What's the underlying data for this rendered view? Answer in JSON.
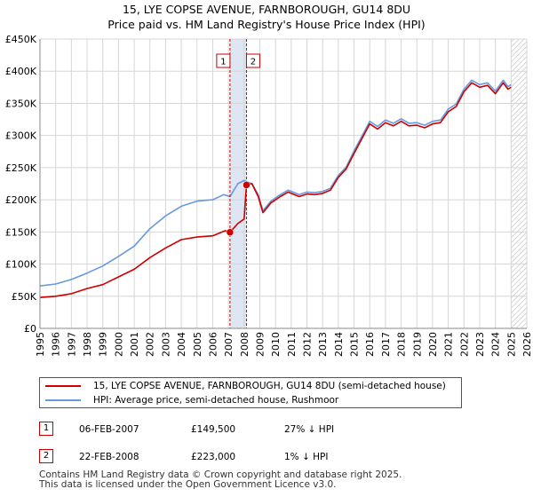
{
  "title_line1": "15, LYE COPSE AVENUE, FARNBOROUGH, GU14 8DU",
  "title_line2": "Price paid vs. HM Land Registry's House Price Index (HPI)",
  "colors": {
    "property": "#cc0000",
    "hpi": "#6699dd",
    "grid": "#d6d6d6",
    "shade": "#dde6f2",
    "marker_line": "#cc0000"
  },
  "chart_data": {
    "type": "line",
    "xlim": [
      1995,
      2026
    ],
    "ylim": [
      0,
      450000
    ],
    "y_ticks": [
      0,
      50000,
      100000,
      150000,
      200000,
      250000,
      300000,
      350000,
      400000,
      450000
    ],
    "y_tick_labels": [
      "£0",
      "£50K",
      "£100K",
      "£150K",
      "£200K",
      "£250K",
      "£300K",
      "£350K",
      "£400K",
      "£450K"
    ],
    "x_ticks": [
      1995,
      1996,
      1997,
      1998,
      1999,
      2000,
      2001,
      2002,
      2003,
      2004,
      2005,
      2006,
      2007,
      2008,
      2009,
      2010,
      2011,
      2012,
      2013,
      2014,
      2015,
      2016,
      2017,
      2018,
      2019,
      2020,
      2021,
      2022,
      2023,
      2024,
      2025,
      2026
    ],
    "grid": true,
    "shaded_ranges": [
      [
        2007.1,
        2008.15
      ]
    ],
    "hatched_range": [
      2025.0,
      2026.0
    ],
    "series": [
      {
        "name": "15, LYE COPSE AVENUE, FARNBOROUGH, GU14 8DU (semi-detached house)",
        "color": "#cc0000",
        "points": [
          [
            1995.0,
            48000
          ],
          [
            1996.0,
            50000
          ],
          [
            1997.0,
            54000
          ],
          [
            1998.0,
            62000
          ],
          [
            1999.0,
            68000
          ],
          [
            2000.0,
            80000
          ],
          [
            2001.0,
            92000
          ],
          [
            2002.0,
            110000
          ],
          [
            2003.0,
            125000
          ],
          [
            2004.0,
            138000
          ],
          [
            2005.0,
            142000
          ],
          [
            2006.0,
            144000
          ],
          [
            2006.8,
            152000
          ],
          [
            2007.1,
            149500
          ],
          [
            2007.6,
            163000
          ],
          [
            2008.0,
            170000
          ],
          [
            2008.15,
            223000
          ],
          [
            2008.5,
            225000
          ],
          [
            2008.9,
            205000
          ],
          [
            2009.2,
            180000
          ],
          [
            2009.7,
            195000
          ],
          [
            2010.3,
            205000
          ],
          [
            2010.8,
            212000
          ],
          [
            2011.5,
            205000
          ],
          [
            2012.0,
            209000
          ],
          [
            2012.5,
            208000
          ],
          [
            2013.0,
            210000
          ],
          [
            2013.5,
            215000
          ],
          [
            2014.0,
            235000
          ],
          [
            2014.5,
            248000
          ],
          [
            2015.0,
            272000
          ],
          [
            2015.5,
            295000
          ],
          [
            2016.0,
            318000
          ],
          [
            2016.5,
            310000
          ],
          [
            2017.0,
            320000
          ],
          [
            2017.5,
            315000
          ],
          [
            2018.0,
            322000
          ],
          [
            2018.5,
            315000
          ],
          [
            2019.0,
            316000
          ],
          [
            2019.5,
            312000
          ],
          [
            2020.0,
            318000
          ],
          [
            2020.5,
            320000
          ],
          [
            2021.0,
            337000
          ],
          [
            2021.5,
            345000
          ],
          [
            2022.0,
            368000
          ],
          [
            2022.5,
            382000
          ],
          [
            2023.0,
            375000
          ],
          [
            2023.5,
            378000
          ],
          [
            2024.0,
            365000
          ],
          [
            2024.5,
            382000
          ],
          [
            2024.8,
            372000
          ],
          [
            2025.0,
            375000
          ]
        ]
      },
      {
        "name": "HPI: Average price, semi-detached house, Rushmoor",
        "color": "#6699dd",
        "points": [
          [
            1995.0,
            66000
          ],
          [
            1996.0,
            69000
          ],
          [
            1997.0,
            76000
          ],
          [
            1998.0,
            86000
          ],
          [
            1999.0,
            97000
          ],
          [
            2000.0,
            112000
          ],
          [
            2001.0,
            128000
          ],
          [
            2002.0,
            155000
          ],
          [
            2003.0,
            175000
          ],
          [
            2004.0,
            190000
          ],
          [
            2005.0,
            198000
          ],
          [
            2006.0,
            200000
          ],
          [
            2006.7,
            208000
          ],
          [
            2007.1,
            205000
          ],
          [
            2007.6,
            225000
          ],
          [
            2008.0,
            230000
          ],
          [
            2008.5,
            225000
          ],
          [
            2008.9,
            208000
          ],
          [
            2009.2,
            183000
          ],
          [
            2009.7,
            198000
          ],
          [
            2010.3,
            208000
          ],
          [
            2010.8,
            215000
          ],
          [
            2011.5,
            208000
          ],
          [
            2012.0,
            212000
          ],
          [
            2012.5,
            211000
          ],
          [
            2013.0,
            213000
          ],
          [
            2013.5,
            218000
          ],
          [
            2014.0,
            238000
          ],
          [
            2014.5,
            251000
          ],
          [
            2015.0,
            276000
          ],
          [
            2015.5,
            299000
          ],
          [
            2016.0,
            322000
          ],
          [
            2016.5,
            314000
          ],
          [
            2017.0,
            324000
          ],
          [
            2017.5,
            319000
          ],
          [
            2018.0,
            326000
          ],
          [
            2018.5,
            319000
          ],
          [
            2019.0,
            320000
          ],
          [
            2019.5,
            316000
          ],
          [
            2020.0,
            322000
          ],
          [
            2020.5,
            324000
          ],
          [
            2021.0,
            341000
          ],
          [
            2021.5,
            349000
          ],
          [
            2022.0,
            372000
          ],
          [
            2022.5,
            386000
          ],
          [
            2023.0,
            379000
          ],
          [
            2023.5,
            382000
          ],
          [
            2024.0,
            369000
          ],
          [
            2024.5,
            386000
          ],
          [
            2024.8,
            376000
          ],
          [
            2025.0,
            379000
          ]
        ]
      }
    ],
    "sales": [
      {
        "label": "1",
        "x": 2007.1,
        "y": 149500
      },
      {
        "label": "2",
        "x": 2008.15,
        "y": 223000
      }
    ]
  },
  "legend": {
    "items": [
      {
        "label": "15, LYE COPSE AVENUE, FARNBOROUGH, GU14 8DU (semi-detached house)",
        "color": "#cc0000"
      },
      {
        "label": "HPI: Average price, semi-detached house, Rushmoor",
        "color": "#6699dd"
      }
    ]
  },
  "transactions": [
    {
      "num": "1",
      "date": "06-FEB-2007",
      "price": "£149,500",
      "hpi": "27% ↓ HPI"
    },
    {
      "num": "2",
      "date": "22-FEB-2008",
      "price": "£223,000",
      "hpi": "1% ↓ HPI"
    }
  ],
  "footer": {
    "line1": "Contains HM Land Registry data © Crown copyright and database right 2025.",
    "line2": "This data is licensed under the Open Government Licence v3.0."
  }
}
